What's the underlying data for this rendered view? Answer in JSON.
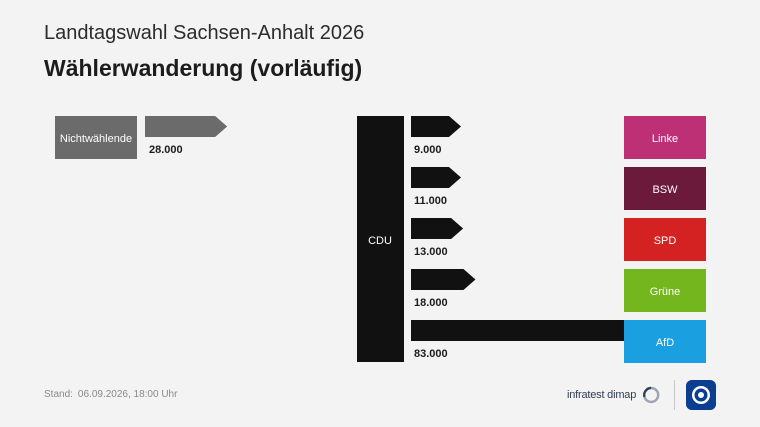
{
  "header": {
    "title": "Landtagswahl Sachsen-Anhalt 2026",
    "subtitle": "Wählerwanderung (vorläufig)"
  },
  "footer": {
    "stand_label": "Stand:",
    "stand_value": "06.09.2026, 18:00 Uhr",
    "brand": "infratest dimap"
  },
  "colors": {
    "nonvoters": "#6b6b6b",
    "cdu": "#111111",
    "Linke": "#be3075",
    "BSW": "#6b1a3c",
    "SPD": "#d42222",
    "Grüne": "#73b61d",
    "AfD": "#1aa0e0"
  },
  "chart_data": {
    "type": "bar",
    "title": "Wählerwanderung (vorläufig)",
    "left_flow": {
      "source": "Nichtwählende",
      "target": "AfD",
      "value": 28000,
      "value_label": "28.000"
    },
    "source_party": "CDU",
    "flows": [
      {
        "target": "Linke",
        "value": 9000,
        "value_label": "9.000"
      },
      {
        "target": "BSW",
        "value": 11000,
        "value_label": "11.000"
      },
      {
        "target": "SPD",
        "value": 13000,
        "value_label": "13.000"
      },
      {
        "target": "Grüne",
        "value": 18000,
        "value_label": "18.000"
      },
      {
        "target": "AfD",
        "value": 83000,
        "value_label": "83.000"
      }
    ]
  }
}
